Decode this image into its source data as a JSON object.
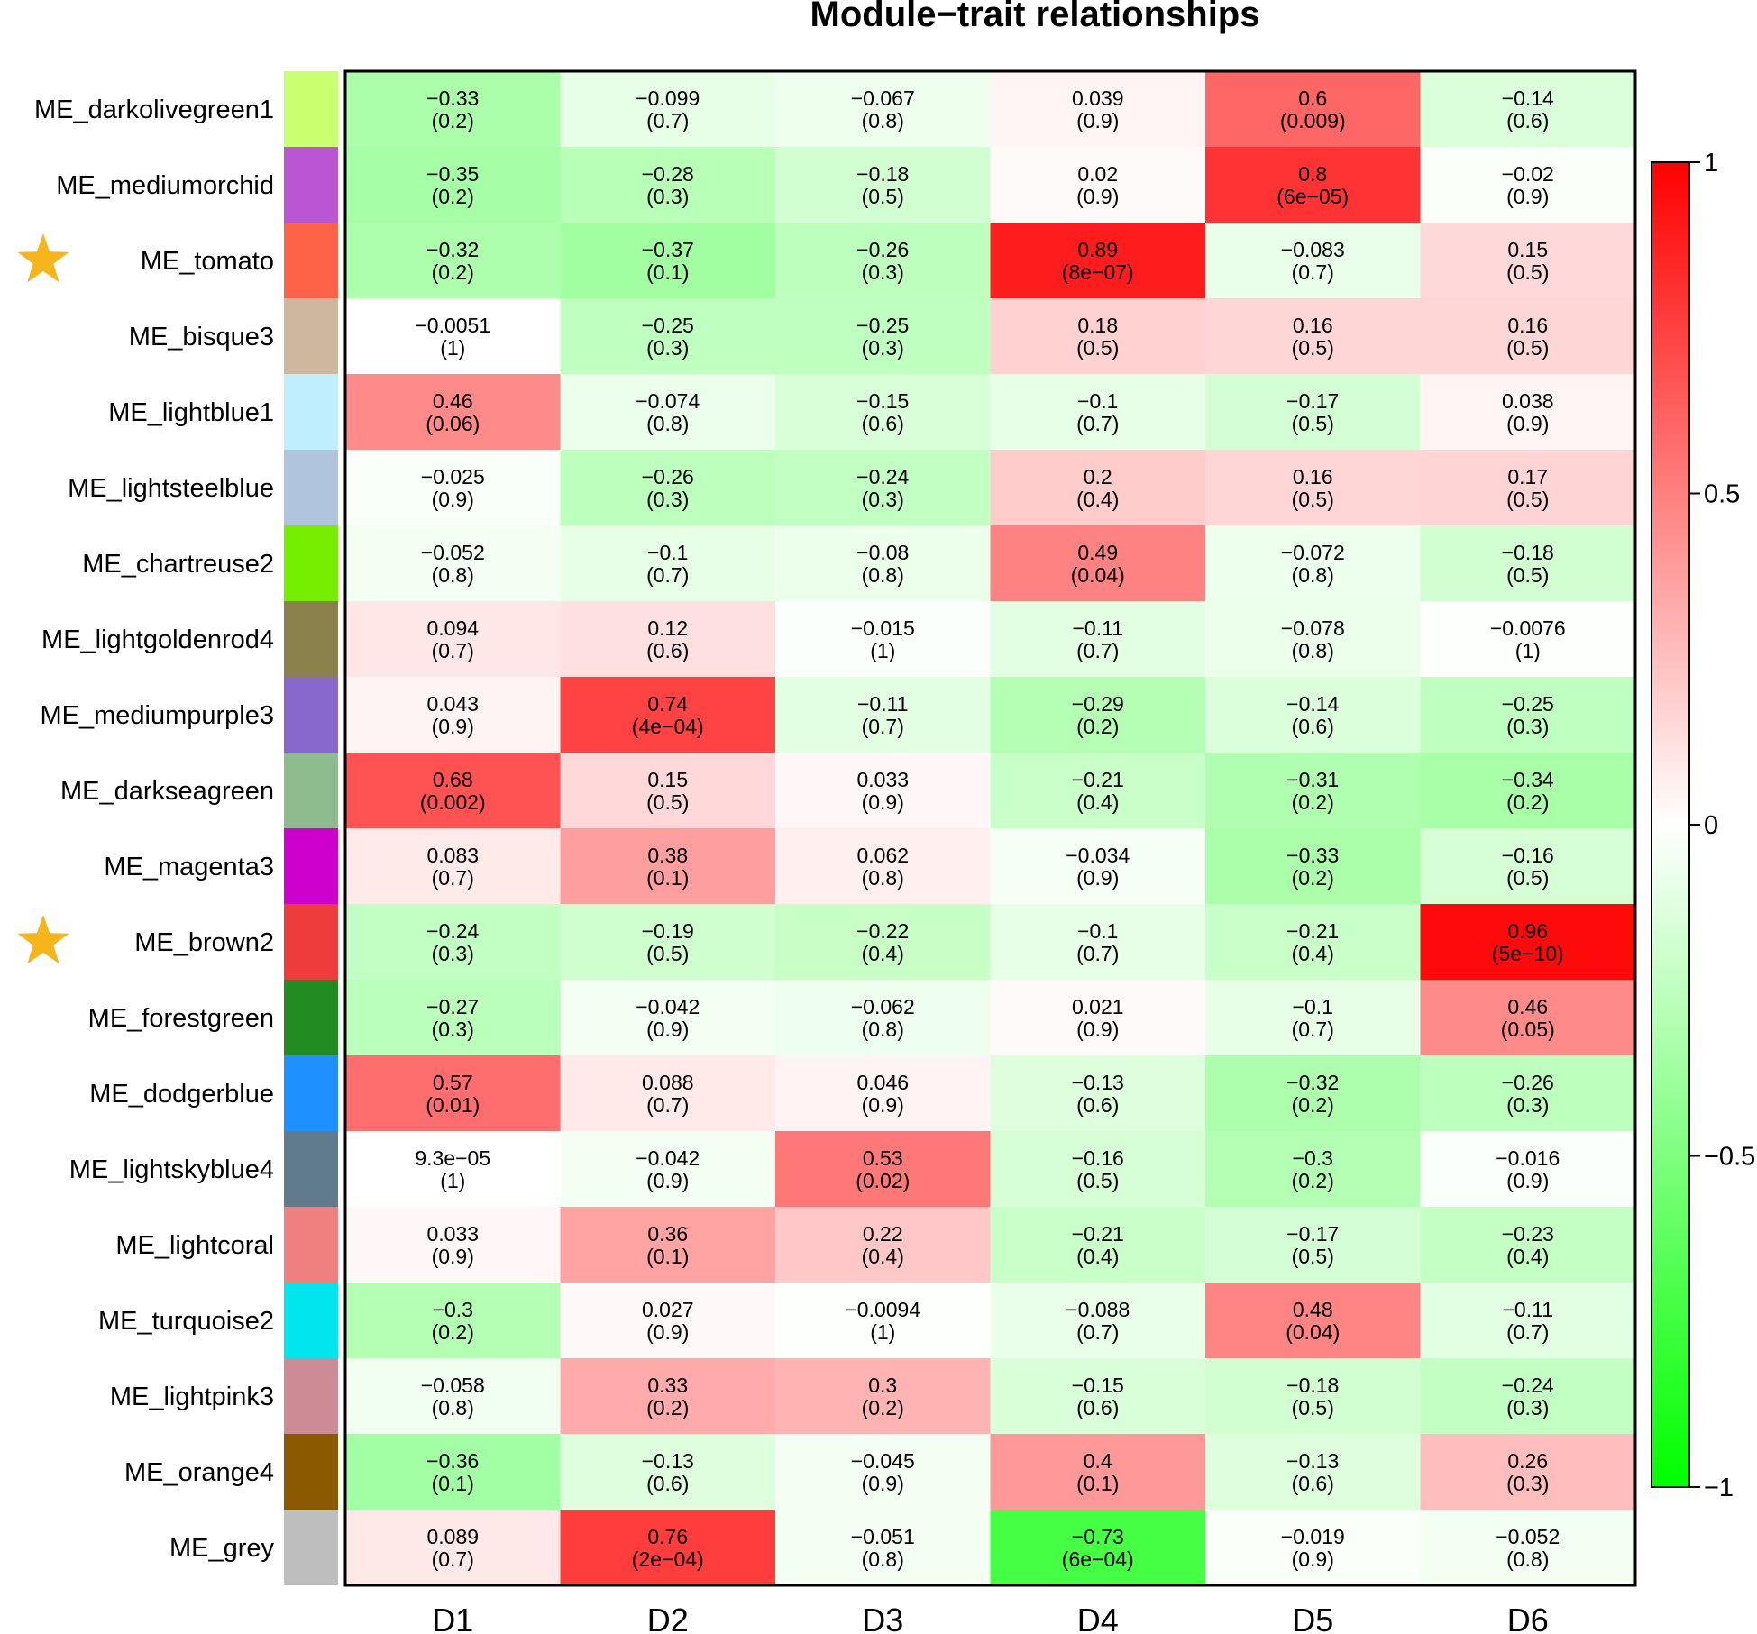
{
  "chart_data": {
    "type": "heatmap",
    "title": "Module−trait relationships",
    "columns": [
      "D1",
      "D2",
      "D3",
      "D4",
      "D5",
      "D6"
    ],
    "rows": [
      {
        "name": "ME_darkolivegreen1",
        "color": "#CAFF70",
        "starred": false,
        "values": [
          "−0.33",
          "−0.099",
          "−0.067",
          "0.039",
          "0.6",
          "−0.14"
        ],
        "pvalues": [
          "(0.2)",
          "(0.7)",
          "(0.8)",
          "(0.9)",
          "(0.009)",
          "(0.6)"
        ]
      },
      {
        "name": "ME_mediumorchid",
        "color": "#BA55D3",
        "starred": false,
        "values": [
          "−0.35",
          "−0.28",
          "−0.18",
          "0.02",
          "0.8",
          "−0.02"
        ],
        "pvalues": [
          "(0.2)",
          "(0.3)",
          "(0.5)",
          "(0.9)",
          "(6e−05)",
          "(0.9)"
        ]
      },
      {
        "name": "ME_tomato",
        "color": "#FF6347",
        "starred": true,
        "values": [
          "−0.32",
          "−0.37",
          "−0.26",
          "0.89",
          "−0.083",
          "0.15"
        ],
        "pvalues": [
          "(0.2)",
          "(0.1)",
          "(0.3)",
          "(8e−07)",
          "(0.7)",
          "(0.5)"
        ]
      },
      {
        "name": "ME_bisque3",
        "color": "#CDB79E",
        "starred": false,
        "values": [
          "−0.0051",
          "−0.25",
          "−0.25",
          "0.18",
          "0.16",
          "0.16"
        ],
        "pvalues": [
          "(1)",
          "(0.3)",
          "(0.3)",
          "(0.5)",
          "(0.5)",
          "(0.5)"
        ]
      },
      {
        "name": "ME_lightblue1",
        "color": "#BFEFFF",
        "starred": false,
        "values": [
          "0.46",
          "−0.074",
          "−0.15",
          "−0.1",
          "−0.17",
          "0.038"
        ],
        "pvalues": [
          "(0.06)",
          "(0.8)",
          "(0.6)",
          "(0.7)",
          "(0.5)",
          "(0.9)"
        ]
      },
      {
        "name": "ME_lightsteelblue",
        "color": "#B0C4DE",
        "starred": false,
        "values": [
          "−0.025",
          "−0.26",
          "−0.24",
          "0.2",
          "0.16",
          "0.17"
        ],
        "pvalues": [
          "(0.9)",
          "(0.3)",
          "(0.3)",
          "(0.4)",
          "(0.5)",
          "(0.5)"
        ]
      },
      {
        "name": "ME_chartreuse2",
        "color": "#76EE00",
        "starred": false,
        "values": [
          "−0.052",
          "−0.1",
          "−0.08",
          "0.49",
          "−0.072",
          "−0.18"
        ],
        "pvalues": [
          "(0.8)",
          "(0.7)",
          "(0.8)",
          "(0.04)",
          "(0.8)",
          "(0.5)"
        ]
      },
      {
        "name": "ME_lightgoldenrod4",
        "color": "#8B814C",
        "starred": false,
        "values": [
          "0.094",
          "0.12",
          "−0.015",
          "−0.11",
          "−0.078",
          "−0.0076"
        ],
        "pvalues": [
          "(0.7)",
          "(0.6)",
          "(1)",
          "(0.7)",
          "(0.8)",
          "(1)"
        ]
      },
      {
        "name": "ME_mediumpurple3",
        "color": "#8968CD",
        "starred": false,
        "values": [
          "0.043",
          "0.74",
          "−0.11",
          "−0.29",
          "−0.14",
          "−0.25"
        ],
        "pvalues": [
          "(0.9)",
          "(4e−04)",
          "(0.7)",
          "(0.2)",
          "(0.6)",
          "(0.3)"
        ]
      },
      {
        "name": "ME_darkseagreen",
        "color": "#8FBC8F",
        "starred": false,
        "values": [
          "0.68",
          "0.15",
          "0.033",
          "−0.21",
          "−0.31",
          "−0.34"
        ],
        "pvalues": [
          "(0.002)",
          "(0.5)",
          "(0.9)",
          "(0.4)",
          "(0.2)",
          "(0.2)"
        ]
      },
      {
        "name": "ME_magenta3",
        "color": "#CD00CD",
        "starred": false,
        "values": [
          "0.083",
          "0.38",
          "0.062",
          "−0.034",
          "−0.33",
          "−0.16"
        ],
        "pvalues": [
          "(0.7)",
          "(0.1)",
          "(0.8)",
          "(0.9)",
          "(0.2)",
          "(0.5)"
        ]
      },
      {
        "name": "ME_brown2",
        "color": "#EE3B3B",
        "starred": true,
        "values": [
          "−0.24",
          "−0.19",
          "−0.22",
          "−0.1",
          "−0.21",
          "0.96"
        ],
        "pvalues": [
          "(0.3)",
          "(0.5)",
          "(0.4)",
          "(0.7)",
          "(0.4)",
          "(5e−10)"
        ]
      },
      {
        "name": "ME_forestgreen",
        "color": "#228B22",
        "starred": false,
        "values": [
          "−0.27",
          "−0.042",
          "−0.062",
          "0.021",
          "−0.1",
          "0.46"
        ],
        "pvalues": [
          "(0.3)",
          "(0.9)",
          "(0.8)",
          "(0.9)",
          "(0.7)",
          "(0.05)"
        ]
      },
      {
        "name": "ME_dodgerblue",
        "color": "#1E90FF",
        "starred": false,
        "values": [
          "0.57",
          "0.088",
          "0.046",
          "−0.13",
          "−0.32",
          "−0.26"
        ],
        "pvalues": [
          "(0.01)",
          "(0.7)",
          "(0.9)",
          "(0.6)",
          "(0.2)",
          "(0.3)"
        ]
      },
      {
        "name": "ME_lightskyblue4",
        "color": "#607B8B",
        "starred": false,
        "values": [
          "9.3e−05",
          "−0.042",
          "0.53",
          "−0.16",
          "−0.3",
          "−0.016"
        ],
        "pvalues": [
          "(1)",
          "(0.9)",
          "(0.02)",
          "(0.5)",
          "(0.2)",
          "(0.9)"
        ]
      },
      {
        "name": "ME_lightcoral",
        "color": "#F08080",
        "starred": false,
        "values": [
          "0.033",
          "0.36",
          "0.22",
          "−0.21",
          "−0.17",
          "−0.23"
        ],
        "pvalues": [
          "(0.9)",
          "(0.1)",
          "(0.4)",
          "(0.4)",
          "(0.5)",
          "(0.4)"
        ]
      },
      {
        "name": "ME_turquoise2",
        "color": "#00E5EE",
        "starred": false,
        "values": [
          "−0.3",
          "0.027",
          "−0.0094",
          "−0.088",
          "0.48",
          "−0.11"
        ],
        "pvalues": [
          "(0.2)",
          "(0.9)",
          "(1)",
          "(0.7)",
          "(0.04)",
          "(0.7)"
        ]
      },
      {
        "name": "ME_lightpink3",
        "color": "#CD8C95",
        "starred": false,
        "values": [
          "−0.058",
          "0.33",
          "0.3",
          "−0.15",
          "−0.18",
          "−0.24"
        ],
        "pvalues": [
          "(0.8)",
          "(0.2)",
          "(0.2)",
          "(0.6)",
          "(0.5)",
          "(0.3)"
        ]
      },
      {
        "name": "ME_orange4",
        "color": "#8B5A00",
        "starred": false,
        "values": [
          "−0.36",
          "−0.13",
          "−0.045",
          "0.4",
          "−0.13",
          "0.26"
        ],
        "pvalues": [
          "(0.1)",
          "(0.6)",
          "(0.9)",
          "(0.1)",
          "(0.6)",
          "(0.3)"
        ]
      },
      {
        "name": "ME_grey",
        "color": "#BEBEBE",
        "starred": false,
        "values": [
          "0.089",
          "0.76",
          "−0.051",
          "−0.73",
          "−0.019",
          "−0.052"
        ],
        "pvalues": [
          "(0.7)",
          "(2e−04)",
          "(0.8)",
          "(6e−04)",
          "(0.9)",
          "(0.8)"
        ]
      }
    ],
    "colorscale": {
      "min": -1,
      "max": 1,
      "low_color": "#00FF00",
      "mid_color": "#FFFFFF",
      "high_color": "#FF0000",
      "ticks": [
        {
          "value": 1,
          "label": "1"
        },
        {
          "value": 0.5,
          "label": "0.5"
        },
        {
          "value": 0,
          "label": "0"
        },
        {
          "value": -0.5,
          "label": "−0.5"
        },
        {
          "value": -1,
          "label": "−1"
        }
      ]
    },
    "star_color": "#F5B51B"
  }
}
